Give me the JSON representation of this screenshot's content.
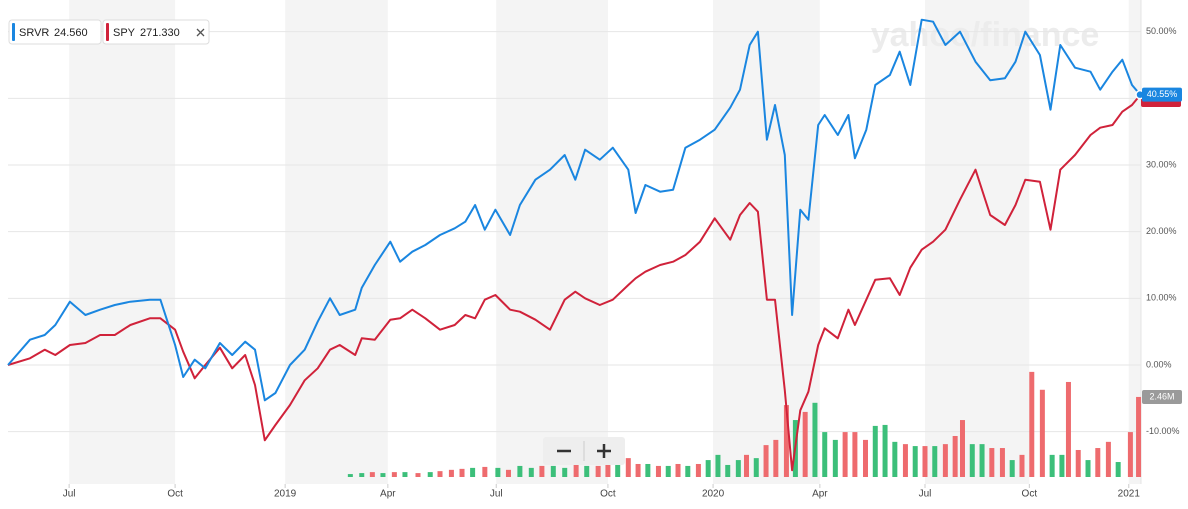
{
  "chart_data": {
    "type": "line",
    "watermark": "yahoo/finance",
    "xlim": [
      0,
      139
    ],
    "xticks": [
      {
        "value": 7.5,
        "label": "Jul"
      },
      {
        "value": 20.5,
        "label": "Oct"
      },
      {
        "value": 34,
        "label": "2019"
      },
      {
        "value": 46.6,
        "label": "Apr"
      },
      {
        "value": 59.9,
        "label": "Jul"
      },
      {
        "value": 73.6,
        "label": "Oct"
      },
      {
        "value": 86.5,
        "label": "2020"
      },
      {
        "value": 99.6,
        "label": "Apr"
      },
      {
        "value": 112.5,
        "label": "Jul"
      },
      {
        "value": 125.3,
        "label": "Oct"
      },
      {
        "value": 137.5,
        "label": "2021"
      }
    ],
    "ylim": [
      -16.8,
      54
    ],
    "yticks": [
      {
        "value": 50,
        "label": "50.00%"
      },
      {
        "value": 40,
        "label": "40.00%"
      },
      {
        "value": 30,
        "label": "30.00%"
      },
      {
        "value": 20,
        "label": "20.00%"
      },
      {
        "value": 10,
        "label": "10.00%"
      },
      {
        "value": 0,
        "label": "0.00%"
      },
      {
        "value": -10,
        "label": "-10.00%"
      }
    ],
    "grid": true,
    "x": [
      0,
      2.7,
      4.5,
      5.8,
      7.6,
      9.5,
      11.3,
      13.1,
      15,
      17.4,
      18.7,
      20.5,
      21.5,
      22.9,
      24.2,
      26,
      27.5,
      29.1,
      30.3,
      31.5,
      32.8,
      34.6,
      36.4,
      38,
      39.5,
      40.7,
      42.6,
      43.4,
      45,
      46.9,
      48.1,
      49.6,
      51.2,
      53,
      54.8,
      56.1,
      57.3,
      58.5,
      59.8,
      61.6,
      62.8,
      64.7,
      66.5,
      68.3,
      69.6,
      70.8,
      72.6,
      74.2,
      76.1,
      77,
      78.2,
      80,
      81.6,
      83.1,
      84.9,
      86.7,
      88.6,
      89.8,
      91,
      92,
      93.1,
      94.1,
      95.3,
      96.2,
      97.2,
      98.2,
      99.4,
      100.2,
      101.8,
      103.1,
      103.9,
      105.3,
      106.4,
      108.2,
      109.4,
      110.7,
      112.1,
      113.5,
      115,
      116.8,
      118.7,
      120.5,
      122.3,
      123.6,
      124.8,
      126.6,
      127.9,
      129.1,
      130.9,
      132.8,
      134,
      135.5,
      136.7,
      137.9,
      138.9
    ],
    "series": [
      {
        "name": "SRVR",
        "quote": {
          "value": 24.56,
          "label": "24.560"
        },
        "color": "#1a86e0",
        "values": [
          0,
          3.8,
          4.5,
          6,
          9.5,
          7.5,
          8.3,
          9,
          9.5,
          9.8,
          9.8,
          3,
          -1.8,
          0.8,
          -0.5,
          3.3,
          1.5,
          3.5,
          2.3,
          -5.3,
          -4.2,
          0,
          2.3,
          6.5,
          10,
          7.5,
          8.3,
          11.6,
          15,
          18.5,
          15.5,
          17,
          18,
          19.5,
          20.5,
          21.5,
          24,
          20.3,
          23.3,
          19.5,
          24,
          27.8,
          29.3,
          31.5,
          27.8,
          32.3,
          30.8,
          32.6,
          29.3,
          22.8,
          27,
          26,
          26.3,
          32.6,
          33.8,
          35.3,
          38.6,
          41.3,
          48,
          50,
          33.8,
          39,
          31.5,
          7.5,
          23.3,
          21.8,
          36,
          37.5,
          34.5,
          37.5,
          31,
          35.3,
          42,
          43.5,
          47,
          42,
          51.8,
          51.5,
          48,
          50,
          45.5,
          42.7,
          43,
          45.5,
          50,
          46.5,
          38.3,
          48,
          44.6,
          44,
          41.3,
          44,
          45.8,
          42,
          40.55
        ]
      },
      {
        "name": "SPY",
        "quote": {
          "value": 271.33,
          "label": "271.330"
        },
        "color": "#d0223a",
        "values": [
          0,
          1,
          2.3,
          1.5,
          3,
          3.3,
          4.5,
          4.5,
          6,
          7,
          7,
          5.3,
          2,
          -2,
          0,
          2.6,
          -0.5,
          1.5,
          -3,
          -11.3,
          -9,
          -6,
          -2.3,
          -0.5,
          2.3,
          3,
          1.5,
          4,
          3.8,
          6.8,
          7,
          8.3,
          7,
          5.3,
          6,
          7.5,
          7,
          9.8,
          10.5,
          8.3,
          8,
          6.8,
          5.3,
          9.8,
          11,
          10,
          9,
          9.8,
          12,
          13,
          14,
          15,
          15.5,
          16.5,
          18.5,
          22,
          18.8,
          22.5,
          24.3,
          23,
          9.8,
          9.8,
          -3.8,
          -15.8,
          -6.8,
          -4,
          3,
          5.5,
          4,
          8.3,
          6,
          9.8,
          12.8,
          13,
          10.5,
          14.6,
          17.3,
          18.5,
          20.3,
          24.8,
          29.3,
          22.5,
          21,
          24,
          27.8,
          27.5,
          20.3,
          29.3,
          31.5,
          34.5,
          35.6,
          36,
          38,
          39,
          40.5
        ]
      }
    ],
    "y2lim": [
      0,
      3380000
    ],
    "volume": [
      {
        "axis": "y2",
        "color": "#3cbf7a",
        "x": [
          42.0,
          43.4,
          46.0,
          48.7,
          51.8,
          57.0,
          60.1,
          62.8,
          64.2,
          66.9,
          68.3,
          71.0,
          74.8,
          78.5,
          81.0,
          83.4,
          85.9,
          87.1,
          88.3,
          89.6,
          91.8,
          96.6,
          99.0,
          100.2,
          101.5,
          106.4,
          107.6,
          108.8,
          111.3,
          113.7,
          118.3,
          119.5,
          123.2,
          128.1,
          129.3,
          132.5,
          136.2
        ],
        "values": [
          90000,
          120000,
          120000,
          150000,
          150000,
          280000,
          280000,
          340000,
          280000,
          340000,
          280000,
          340000,
          520000,
          400000,
          340000,
          340000,
          520000,
          680000,
          370000,
          520000,
          580000,
          1750000,
          2280000,
          1380000,
          1140000,
          1570000,
          1600000,
          1080000,
          950000,
          950000,
          1010000,
          1010000,
          520000,
          680000,
          680000,
          520000,
          460000
        ]
      },
      {
        "axis": "y2",
        "color": "#ee6b6e",
        "x": [
          44.7,
          47.4,
          50.3,
          53.0,
          54.4,
          55.7,
          58.5,
          61.4,
          65.5,
          69.7,
          72.4,
          73.6,
          76.1,
          77.3,
          79.8,
          82.2,
          84.7,
          90.6,
          93.0,
          94.2,
          95.5,
          97.8,
          102.7,
          103.9,
          105.2,
          110.1,
          112.5,
          115.0,
          116.2,
          117.1,
          120.7,
          122.0,
          124.4,
          125.6,
          126.9,
          130.1,
          131.3,
          133.7,
          135.0,
          137.7,
          138.7
        ],
        "values": [
          150000,
          150000,
          120000,
          180000,
          220000,
          250000,
          310000,
          220000,
          340000,
          430000,
          340000,
          460000,
          580000,
          400000,
          340000,
          400000,
          400000,
          680000,
          980000,
          1140000,
          2210000,
          2000000,
          1380000,
          1380000,
          1140000,
          1010000,
          950000,
          1010000,
          1260000,
          1750000,
          890000,
          890000,
          680000,
          3230000,
          2680000,
          2920000,
          830000,
          890000,
          1080000,
          1380000,
          2460000
        ]
      }
    ],
    "annotations": [
      {
        "value": 40.55,
        "label": "40.55%",
        "color": "#1a86e0"
      },
      {
        "axis": "y2",
        "value": 2460000,
        "label": "2.46M",
        "color": "#9a9a9a"
      }
    ]
  }
}
